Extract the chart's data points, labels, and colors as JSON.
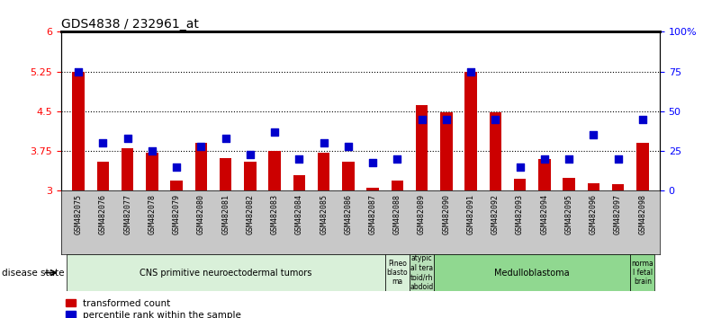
{
  "title": "GDS4838 / 232961_at",
  "samples": [
    "GSM482075",
    "GSM482076",
    "GSM482077",
    "GSM482078",
    "GSM482079",
    "GSM482080",
    "GSM482081",
    "GSM482082",
    "GSM482083",
    "GSM482084",
    "GSM482085",
    "GSM482086",
    "GSM482087",
    "GSM482088",
    "GSM482089",
    "GSM482090",
    "GSM482091",
    "GSM482092",
    "GSM482093",
    "GSM482094",
    "GSM482095",
    "GSM482096",
    "GSM482097",
    "GSM482098"
  ],
  "red_values": [
    5.25,
    3.55,
    3.8,
    3.72,
    3.2,
    3.9,
    3.62,
    3.55,
    3.75,
    3.3,
    3.72,
    3.55,
    3.05,
    3.2,
    4.62,
    4.48,
    5.25,
    4.48,
    3.22,
    3.6,
    3.25,
    3.15,
    3.12,
    3.9
  ],
  "blue_values": [
    75,
    30,
    33,
    25,
    15,
    28,
    33,
    23,
    37,
    20,
    30,
    28,
    18,
    20,
    45,
    45,
    75,
    45,
    15,
    20,
    20,
    35,
    20,
    45
  ],
  "ylim_left": [
    3.0,
    6.0
  ],
  "ylim_right": [
    0,
    100
  ],
  "yticks_left": [
    3.0,
    3.75,
    4.5,
    5.25,
    6.0
  ],
  "ytick_labels_left": [
    "3",
    "3.75",
    "4.5",
    "5.25",
    "6"
  ],
  "yticks_right": [
    0,
    25,
    50,
    75,
    100
  ],
  "ytick_labels_right": [
    "0",
    "25",
    "50",
    "75",
    "100%"
  ],
  "hlines": [
    3.75,
    4.5,
    5.25
  ],
  "bar_color": "#cc0000",
  "dot_color": "#0000cc",
  "bar_width": 0.5,
  "dot_size": 30,
  "disease_groups": [
    {
      "label": "CNS primitive neuroectodermal tumors",
      "start": 0,
      "end": 13,
      "color": "#d9f0d9"
    },
    {
      "label": "Pineo\nblasto\nma",
      "start": 13,
      "end": 14,
      "color": "#d9f0d9"
    },
    {
      "label": "atypic\nal tera\ntoid/rh\nabdoid",
      "start": 14,
      "end": 15,
      "color": "#b8e0b8"
    },
    {
      "label": "Medulloblastoma",
      "start": 15,
      "end": 23,
      "color": "#90d890"
    },
    {
      "label": "norma\nl fetal\nbrain",
      "start": 23,
      "end": 24,
      "color": "#90d890"
    }
  ],
  "xlabel_disease": "disease state",
  "legend_red": "transformed count",
  "legend_blue": "percentile rank within the sample",
  "plot_bg": "#ffffff",
  "xtick_bg": "#c8c8c8",
  "title_fontsize": 10,
  "tick_fontsize": 7,
  "sample_fontsize": 6
}
